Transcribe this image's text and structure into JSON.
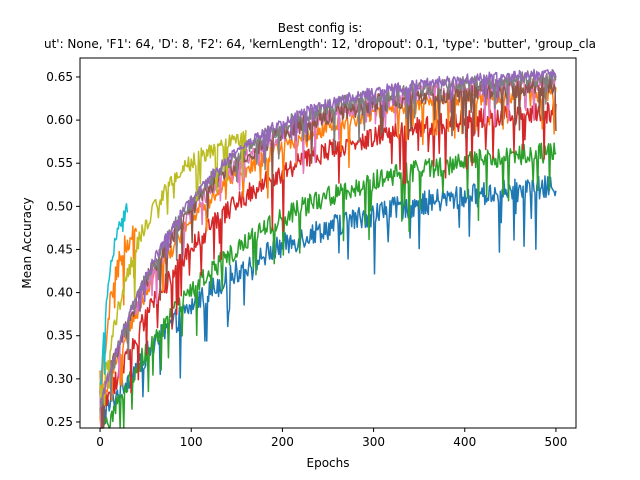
{
  "chart_data": {
    "type": "line",
    "title_line1": "Best config is:",
    "title_line2": "ut': None, 'F1': 64, 'D': 8, 'F2': 64, 'kernLength': 12, 'dropout': 0.1, 'type': 'butter', 'group_cla",
    "xlabel": "Epochs",
    "ylabel": "Mean Accuracy",
    "xlim": [
      -22,
      522
    ],
    "ylim": [
      0.243,
      0.672
    ],
    "xticks": [
      0,
      100,
      200,
      300,
      400,
      500
    ],
    "yticks": [
      0.25,
      0.3,
      0.35,
      0.4,
      0.45,
      0.5,
      0.55,
      0.6,
      0.65
    ],
    "ytick_labels": [
      "0.25",
      "0.30",
      "0.35",
      "0.40",
      "0.45",
      "0.50",
      "0.55",
      "0.60",
      "0.65"
    ],
    "series": [
      {
        "color": "#1f77b4",
        "epochs": 500,
        "start": 0.28,
        "final": 0.545,
        "tau": 150,
        "noise": 0.014
      },
      {
        "color": "#2ca02c",
        "epochs": 500,
        "start": 0.26,
        "final": 0.585,
        "tau": 140,
        "noise": 0.012
      },
      {
        "color": "#d62728",
        "epochs": 500,
        "start": 0.28,
        "final": 0.625,
        "tau": 120,
        "noise": 0.012
      },
      {
        "color": "#ff7f0e",
        "epochs": 40,
        "start": 0.29,
        "final": 0.49,
        "tau": 12,
        "noise": 0.015
      },
      {
        "color": "#ff7f0e",
        "epochs": 500,
        "start": 0.3,
        "final": 0.645,
        "tau": 110,
        "noise": 0.01
      },
      {
        "color": "#e377c2",
        "epochs": 500,
        "start": 0.3,
        "final": 0.655,
        "tau": 105,
        "noise": 0.01
      },
      {
        "color": "#8c564b",
        "epochs": 500,
        "start": 0.3,
        "final": 0.65,
        "tau": 100,
        "noise": 0.011
      },
      {
        "color": "#7f7f7f",
        "epochs": 500,
        "start": 0.3,
        "final": 0.66,
        "tau": 100,
        "noise": 0.009
      },
      {
        "color": "#bcbd22",
        "epochs": 160,
        "start": 0.3,
        "final": 0.6,
        "tau": 45,
        "noise": 0.01
      },
      {
        "color": "#17becf",
        "epochs": 30,
        "start": 0.3,
        "final": 0.52,
        "tau": 10,
        "noise": 0.01
      },
      {
        "color": "#9467bd",
        "epochs": 500,
        "start": 0.3,
        "final": 0.665,
        "tau": 100,
        "noise": 0.006
      }
    ]
  }
}
